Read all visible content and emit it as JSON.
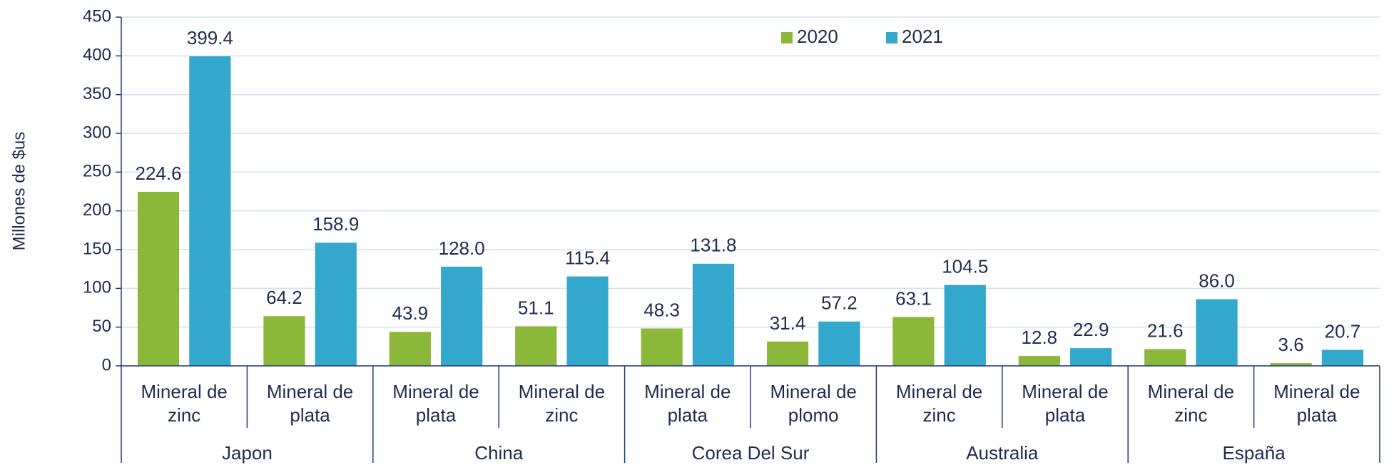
{
  "chart_data": {
    "type": "bar",
    "y_label": "Millones de $us",
    "categories": [
      "Mineral de zinc",
      "Mineral de plata",
      "Mineral de plata",
      "Mineral de zinc",
      "Mineral de plata",
      "Mineral de plomo",
      "Mineral de zinc",
      "Mineral de plata",
      "Mineral de zinc",
      "Mineral de plata"
    ],
    "groups": [
      "Japon",
      "China",
      "Corea Del Sur",
      "Australia",
      "España"
    ],
    "series": [
      {
        "name": "2020",
        "color": "#8cb83a",
        "values": [
          224.6,
          64.2,
          43.9,
          51.1,
          48.3,
          31.4,
          63.1,
          12.8,
          21.6,
          3.6
        ],
        "value_labels": [
          "224.6",
          "64.2",
          "43.9",
          "51.1",
          "48.3",
          "31.4",
          "63.1",
          "12.8",
          "21.6",
          "3.6"
        ]
      },
      {
        "name": "2021",
        "color": "#33a8cc",
        "values": [
          399.4,
          158.9,
          128.0,
          115.4,
          131.8,
          57.2,
          104.5,
          22.9,
          86.0,
          20.7
        ],
        "value_labels": [
          "399.4",
          "158.9",
          "128.0",
          "115.4",
          "131.8",
          "57.2",
          "104.5",
          "22.9",
          "86.0",
          "20.7"
        ]
      }
    ],
    "ylim": [
      0,
      450
    ],
    "yticks": [
      0,
      50,
      100,
      150,
      200,
      250,
      300,
      350,
      400,
      450
    ],
    "grid": true,
    "legend": "top"
  }
}
